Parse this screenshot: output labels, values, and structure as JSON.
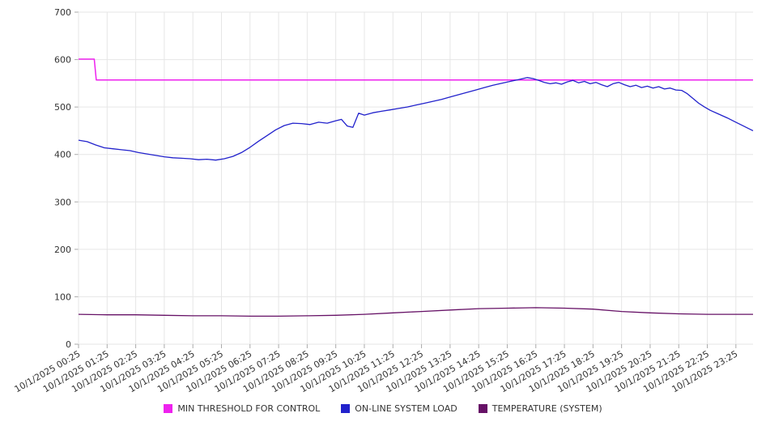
{
  "chart_data": {
    "type": "line",
    "title": "",
    "xlabel": "",
    "ylabel": "",
    "ylim": [
      0,
      700
    ],
    "y_ticks": [
      0,
      100,
      200,
      300,
      400,
      500,
      600,
      700
    ],
    "x_tick_labels": [
      "10/1/2025 00:25",
      "10/1/2025 01:25",
      "10/1/2025 02:25",
      "10/1/2025 03:25",
      "10/1/2025 04:25",
      "10/1/2025 05:25",
      "10/1/2025 06:25",
      "10/1/2025 07:25",
      "10/1/2025 08:25",
      "10/1/2025 09:25",
      "10/1/2025 10:25",
      "10/1/2025 11:25",
      "10/1/2025 12:25",
      "10/1/2025 13:25",
      "10/1/2025 14:25",
      "10/1/2025 15:25",
      "10/1/2025 16:25",
      "10/1/2025 17:25",
      "10/1/2025 18:25",
      "10/1/2025 19:25",
      "10/1/2025 20:25",
      "10/1/2025 21:25",
      "10/1/2025 22:25",
      "10/1/2025 23:25"
    ],
    "x_domain_hours": [
      0,
      23.6
    ],
    "grid": true,
    "legend_position": "bottom",
    "colors": {
      "grid": "#e6e6e6",
      "tick": "#aaaaaa",
      "text": "#333333",
      "background": "#ffffff"
    },
    "series": [
      {
        "name": "MIN THRESHOLD FOR CONTROL",
        "color": "#ee22ee",
        "points": [
          [
            0,
            601
          ],
          [
            0.55,
            601
          ],
          [
            0.62,
            557
          ],
          [
            23.6,
            557
          ]
        ]
      },
      {
        "name": "ON-LINE SYSTEM LOAD",
        "color": "#2222cc",
        "points": [
          [
            0,
            430
          ],
          [
            0.3,
            427
          ],
          [
            0.6,
            420
          ],
          [
            0.9,
            414
          ],
          [
            1.2,
            412
          ],
          [
            1.5,
            410
          ],
          [
            1.8,
            408
          ],
          [
            2.1,
            404
          ],
          [
            2.4,
            401
          ],
          [
            2.7,
            398
          ],
          [
            3.0,
            395
          ],
          [
            3.3,
            393
          ],
          [
            3.6,
            392
          ],
          [
            3.9,
            391
          ],
          [
            4.2,
            389
          ],
          [
            4.5,
            390
          ],
          [
            4.8,
            388
          ],
          [
            5.1,
            391
          ],
          [
            5.4,
            396
          ],
          [
            5.7,
            404
          ],
          [
            6.0,
            415
          ],
          [
            6.3,
            428
          ],
          [
            6.6,
            440
          ],
          [
            6.9,
            452
          ],
          [
            7.2,
            461
          ],
          [
            7.5,
            466
          ],
          [
            7.8,
            465
          ],
          [
            8.1,
            463
          ],
          [
            8.4,
            468
          ],
          [
            8.7,
            466
          ],
          [
            9.0,
            471
          ],
          [
            9.2,
            474
          ],
          [
            9.4,
            460
          ],
          [
            9.6,
            457
          ],
          [
            9.8,
            487
          ],
          [
            10.0,
            483
          ],
          [
            10.3,
            488
          ],
          [
            10.6,
            491
          ],
          [
            10.9,
            494
          ],
          [
            11.2,
            497
          ],
          [
            11.5,
            500
          ],
          [
            11.8,
            504
          ],
          [
            12.1,
            508
          ],
          [
            12.4,
            512
          ],
          [
            12.7,
            516
          ],
          [
            13.0,
            521
          ],
          [
            13.3,
            526
          ],
          [
            13.6,
            531
          ],
          [
            13.9,
            536
          ],
          [
            14.2,
            541
          ],
          [
            14.5,
            546
          ],
          [
            14.8,
            550
          ],
          [
            15.1,
            554
          ],
          [
            15.4,
            558
          ],
          [
            15.7,
            562
          ],
          [
            15.9,
            560
          ],
          [
            16.1,
            556
          ],
          [
            16.3,
            552
          ],
          [
            16.5,
            549
          ],
          [
            16.7,
            551
          ],
          [
            16.9,
            548
          ],
          [
            17.1,
            553
          ],
          [
            17.3,
            556
          ],
          [
            17.5,
            551
          ],
          [
            17.7,
            554
          ],
          [
            17.9,
            549
          ],
          [
            18.1,
            552
          ],
          [
            18.3,
            547
          ],
          [
            18.5,
            543
          ],
          [
            18.7,
            549
          ],
          [
            18.9,
            552
          ],
          [
            19.1,
            547
          ],
          [
            19.3,
            543
          ],
          [
            19.5,
            546
          ],
          [
            19.7,
            541
          ],
          [
            19.9,
            544
          ],
          [
            20.1,
            540
          ],
          [
            20.3,
            543
          ],
          [
            20.5,
            538
          ],
          [
            20.7,
            540
          ],
          [
            20.9,
            536
          ],
          [
            21.1,
            535
          ],
          [
            21.3,
            528
          ],
          [
            21.5,
            518
          ],
          [
            21.7,
            508
          ],
          [
            21.9,
            500
          ],
          [
            22.1,
            493
          ],
          [
            22.4,
            485
          ],
          [
            22.7,
            477
          ],
          [
            23.0,
            468
          ],
          [
            23.2,
            462
          ],
          [
            23.4,
            456
          ],
          [
            23.6,
            450
          ]
        ]
      },
      {
        "name": "TEMPERATURE (SYSTEM)",
        "color": "#661166",
        "points": [
          [
            0,
            63
          ],
          [
            1,
            62
          ],
          [
            2,
            62
          ],
          [
            3,
            61
          ],
          [
            4,
            60
          ],
          [
            5,
            60
          ],
          [
            6,
            59
          ],
          [
            7,
            59
          ],
          [
            8,
            60
          ],
          [
            9,
            61
          ],
          [
            10,
            63
          ],
          [
            11,
            66
          ],
          [
            12,
            69
          ],
          [
            13,
            72
          ],
          [
            14,
            75
          ],
          [
            15,
            76
          ],
          [
            16,
            77
          ],
          [
            17,
            76
          ],
          [
            18,
            74
          ],
          [
            19,
            69
          ],
          [
            20,
            66
          ],
          [
            21,
            64
          ],
          [
            22,
            63
          ],
          [
            23,
            63
          ],
          [
            23.6,
            63
          ]
        ]
      }
    ]
  }
}
